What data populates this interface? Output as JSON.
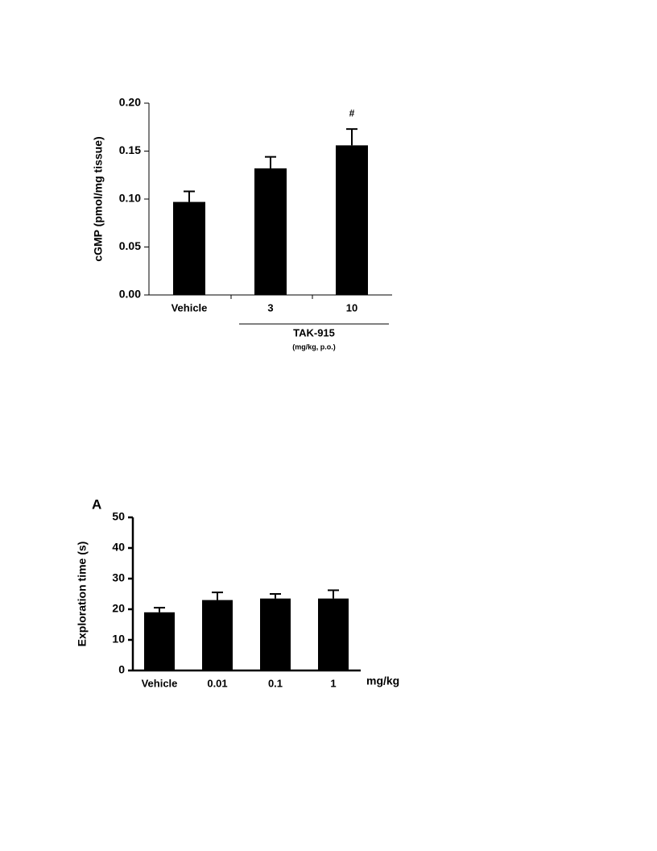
{
  "chart_data": [
    {
      "type": "bar",
      "ylabel": "cGMP (pmol/mg tissue)",
      "categories": [
        "Vehicle",
        "3",
        "10"
      ],
      "values": [
        0.097,
        0.132,
        0.156
      ],
      "errors": [
        0.011,
        0.012,
        0.017
      ],
      "color": "#000000",
      "ylim": [
        0,
        0.2
      ],
      "yticks": [
        {
          "value": 0,
          "label": "0.00"
        },
        {
          "value": 0.05,
          "label": "0.05"
        },
        {
          "value": 0.1,
          "label": "0.10"
        },
        {
          "value": 0.15,
          "label": "0.15"
        },
        {
          "value": 0.2,
          "label": "0.20"
        }
      ],
      "annotation": "#",
      "group_label": "TAK-915",
      "group_sublabel": "(mg/kg, p.o.)"
    },
    {
      "type": "bar",
      "panel_label": "A",
      "ylabel": "Exploration time (s)",
      "xlabel": "mg/kg",
      "categories": [
        "Vehicle",
        "0.01",
        "0.1",
        "1"
      ],
      "values": [
        19,
        23,
        23.5,
        23.5
      ],
      "errors": [
        1.5,
        2.5,
        1.5,
        2.7
      ],
      "color": "#000000",
      "ylim": [
        0,
        50
      ],
      "yticks": [
        0,
        10,
        20,
        30,
        40,
        50
      ]
    }
  ]
}
